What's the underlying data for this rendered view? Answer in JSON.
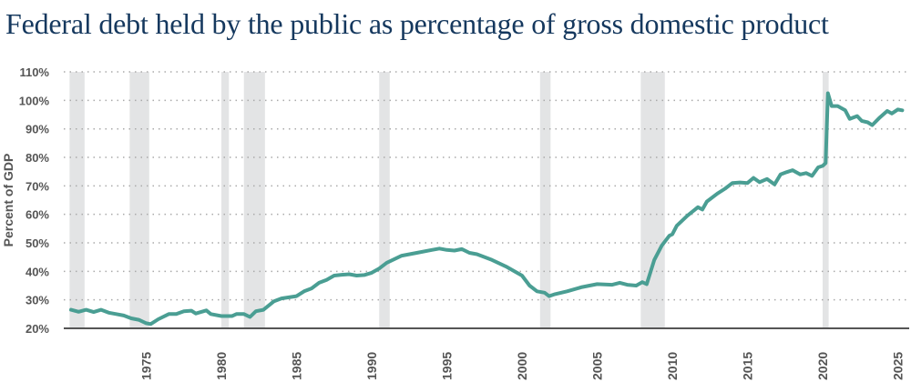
{
  "title": "Federal debt held by the public as percentage of gross domestic product",
  "chart_data": {
    "type": "line",
    "title": "Federal debt held by the public as percentage of gross domestic product",
    "xlabel": "",
    "ylabel": "Percent of GDP",
    "xlim": [
      1970,
      2025.5
    ],
    "ylim": [
      20,
      110
    ],
    "grid": "horizontal dotted",
    "colors": {
      "line": "#4a9e93",
      "recession": "#e3e4e5",
      "grid": "#aaaaaa",
      "title": "#15385e"
    },
    "y_ticks": [
      20,
      30,
      40,
      50,
      60,
      70,
      80,
      90,
      100,
      110
    ],
    "y_tick_labels": [
      "20%",
      "30%",
      "40%",
      "50%",
      "60%",
      "70%",
      "80%",
      "90%",
      "100%",
      "110%"
    ],
    "x_ticks": [
      1975,
      1980,
      1985,
      1990,
      1995,
      2000,
      2005,
      2010,
      2015,
      2020,
      2025
    ],
    "x_tick_labels": [
      "1975",
      "1980",
      "1985",
      "1990",
      "1995",
      "2000",
      "2005",
      "2010",
      "2015",
      "2020",
      "2025"
    ],
    "recessions": [
      [
        1969.9,
        1970.9
      ],
      [
        1973.9,
        1975.2
      ],
      [
        1980.0,
        1980.5
      ],
      [
        1981.5,
        1982.9
      ],
      [
        1990.5,
        1991.2
      ],
      [
        2001.2,
        2001.9
      ],
      [
        2007.9,
        2009.5
      ],
      [
        2020.0,
        2020.4
      ]
    ],
    "series": [
      {
        "x": [
          1970,
          1970.5,
          1971,
          1971.5,
          1972,
          1972.5,
          1973,
          1973.5,
          1974,
          1974.5,
          1975,
          1975.3,
          1975.8,
          1976.5,
          1977,
          1977.5,
          1978,
          1978.3,
          1979,
          1979.3,
          1980,
          1980.7,
          1981,
          1981.5,
          1981.9,
          1982.3,
          1982.8,
          1983.5,
          1984,
          1985,
          1985.5,
          1986,
          1986.5,
          1987,
          1987.5,
          1988,
          1988.5,
          1989,
          1989.5,
          1990,
          1990.5,
          1991,
          1992,
          1993,
          1994,
          1994.5,
          1995,
          1995.5,
          1996,
          1996.5,
          1997,
          1998,
          1999,
          2000,
          2000.5,
          2001,
          2001.5,
          2001.8,
          2002.2,
          2003,
          2004,
          2005,
          2006,
          2006.5,
          2007,
          2007.6,
          2008,
          2008.3,
          2008.8,
          2009.3,
          2009.8,
          2010,
          2010.3,
          2011,
          2011.7,
          2012,
          2012.3,
          2013,
          2013.5,
          2014,
          2014.5,
          2015,
          2015.4,
          2015.8,
          2016.3,
          2016.8,
          2017.2,
          2017.6,
          2018,
          2018.5,
          2018.9,
          2019.3,
          2019.7,
          2020,
          2020.2,
          2020.35,
          2020.6,
          2021,
          2021.5,
          2021.8,
          2022.3,
          2022.6,
          2023,
          2023.3,
          2023.8,
          2024.3,
          2024.6,
          2025,
          2025.3
        ],
        "values": [
          26.5,
          25.8,
          26.5,
          25.7,
          26.5,
          25.5,
          25,
          24.5,
          23.5,
          23,
          21.8,
          21.5,
          23.2,
          25,
          25,
          26,
          26.2,
          25.2,
          26.3,
          25,
          24.3,
          24.3,
          25,
          25,
          24,
          26,
          26.5,
          29.5,
          30.5,
          31.3,
          33,
          34,
          36,
          37,
          38.5,
          38.8,
          39,
          38.5,
          38.7,
          39.5,
          41,
          43,
          45.5,
          46.5,
          47.5,
          48,
          47.5,
          47.3,
          47.8,
          46.5,
          46,
          44,
          41.5,
          38.5,
          35,
          33,
          32.5,
          31.3,
          32,
          33,
          34.5,
          35.5,
          35.3,
          36,
          35.3,
          35,
          36.2,
          35.5,
          44,
          49,
          52.5,
          53,
          56,
          59.5,
          62.5,
          61.7,
          64.5,
          67.3,
          69,
          71,
          71.2,
          71,
          72.8,
          71.3,
          72.4,
          70.5,
          74,
          74.8,
          75.5,
          74,
          74.5,
          73.5,
          76.5,
          77,
          78,
          102.5,
          98,
          98,
          96.5,
          93.5,
          94.5,
          92.8,
          92.3,
          91.3,
          94,
          96.3,
          95.4,
          96.8,
          96.5
        ]
      }
    ]
  }
}
